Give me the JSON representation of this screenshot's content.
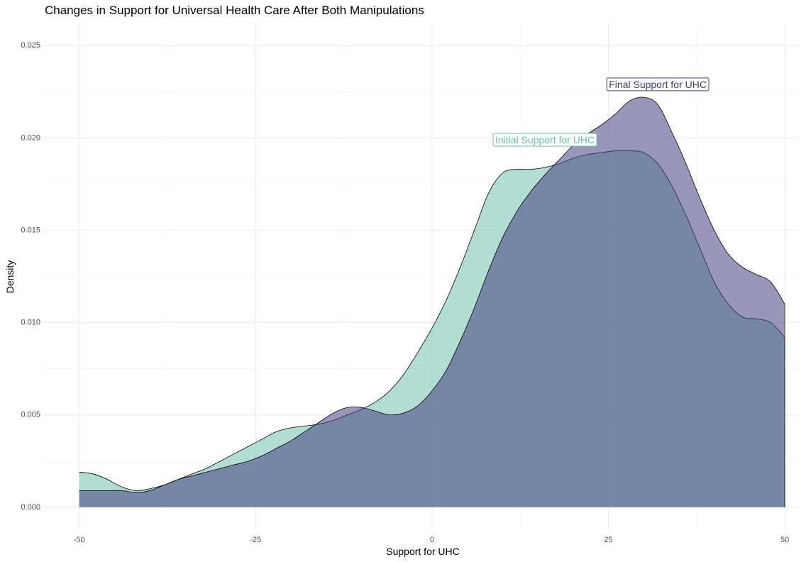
{
  "chart_data": {
    "type": "area",
    "title": "Changes in Support for Universal Health Care After Both Manipulations",
    "xlabel": "Support for UHC",
    "ylabel": "Density",
    "xlim": [
      -55,
      52
    ],
    "ylim": [
      -0.0012,
      0.0262
    ],
    "x_ticks": [
      -50,
      -25,
      0,
      25,
      50
    ],
    "x_tick_labels": [
      "-50",
      "-25",
      "0",
      "25",
      "50"
    ],
    "y_ticks": [
      0,
      0.005,
      0.01,
      0.015,
      0.02,
      0.025
    ],
    "y_tick_labels": [
      "0.000",
      "0.005",
      "0.010",
      "0.015",
      "0.020",
      "0.025"
    ],
    "grid": true,
    "legend": "none",
    "series": [
      {
        "name": "Initial Support for UHC",
        "color": "#66c2a5",
        "fill": "rgba(102,188,166,0.5)",
        "x": [
          -50,
          -48,
          -46,
          -44,
          -42,
          -40,
          -38,
          -36,
          -34,
          -32,
          -30,
          -28,
          -26,
          -24,
          -22,
          -20,
          -18,
          -16,
          -14,
          -12,
          -10,
          -8,
          -6,
          -4,
          -2,
          0,
          2,
          4,
          6,
          8,
          10,
          12,
          14,
          16,
          18,
          20,
          22,
          24,
          26,
          28,
          30,
          32,
          34,
          36,
          38,
          40,
          42,
          44,
          46,
          48,
          50
        ],
        "y": [
          0.0019,
          0.0018,
          0.0015,
          0.0011,
          0.0009,
          0.001,
          0.0012,
          0.0015,
          0.0018,
          0.0021,
          0.0025,
          0.0029,
          0.0033,
          0.0037,
          0.0041,
          0.0043,
          0.0044,
          0.0045,
          0.0047,
          0.005,
          0.0053,
          0.0057,
          0.0063,
          0.0072,
          0.0084,
          0.0097,
          0.0112,
          0.013,
          0.015,
          0.017,
          0.0181,
          0.0183,
          0.0183,
          0.0184,
          0.0186,
          0.0189,
          0.0191,
          0.0192,
          0.0193,
          0.0193,
          0.0192,
          0.0186,
          0.0174,
          0.0158,
          0.014,
          0.0122,
          0.011,
          0.0103,
          0.0102,
          0.01,
          0.0092
        ]
      },
      {
        "name": "Final Support for UHC",
        "color": "#3f3d80",
        "fill": "rgba(70,63,130,0.55)",
        "x": [
          -50,
          -48,
          -46,
          -44,
          -42,
          -40,
          -38,
          -36,
          -34,
          -32,
          -30,
          -28,
          -26,
          -24,
          -22,
          -20,
          -18,
          -16,
          -14,
          -12,
          -10,
          -8,
          -6,
          -4,
          -2,
          0,
          2,
          4,
          6,
          8,
          10,
          12,
          14,
          16,
          18,
          20,
          22,
          24,
          26,
          28,
          30,
          32,
          34,
          36,
          38,
          40,
          42,
          44,
          46,
          48,
          50
        ],
        "y": [
          0.0009,
          0.0009,
          0.0009,
          0.0009,
          0.0008,
          0.0009,
          0.0012,
          0.0015,
          0.0017,
          0.0019,
          0.0021,
          0.0023,
          0.0025,
          0.0028,
          0.0032,
          0.0036,
          0.0041,
          0.0046,
          0.0051,
          0.0054,
          0.0054,
          0.0052,
          0.005,
          0.0051,
          0.0055,
          0.0063,
          0.0074,
          0.009,
          0.0108,
          0.0128,
          0.0146,
          0.016,
          0.0171,
          0.018,
          0.0188,
          0.0196,
          0.0202,
          0.0207,
          0.0213,
          0.022,
          0.0222,
          0.0218,
          0.0203,
          0.0186,
          0.0167,
          0.015,
          0.0137,
          0.013,
          0.0126,
          0.0122,
          0.011
        ]
      }
    ],
    "annotations": [
      {
        "text": "Initial Support for UHC",
        "x": 16,
        "y": 0.0199,
        "color": "#66c2a5"
      },
      {
        "text": "Final Support for UHC",
        "x": 32,
        "y": 0.0229,
        "color": "#3f3d80"
      }
    ]
  }
}
